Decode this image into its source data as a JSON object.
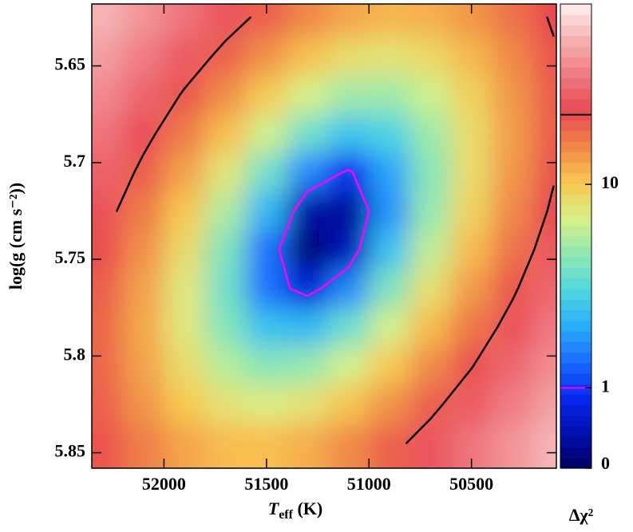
{
  "chart_data": {
    "type": "contour",
    "xlabel": {
      "symbol": "T",
      "subscript": "eff",
      "unit": " (K)"
    },
    "ylabel": "log(g (cm s⁻²))",
    "colorbar_label": "Δχ²",
    "xlim": [
      52352,
      50086
    ],
    "ylim": [
      5.858,
      5.618
    ],
    "xticks": [
      52000,
      51500,
      51000,
      50500
    ],
    "yticks": [
      5.65,
      5.7,
      5.75,
      5.8,
      5.85
    ],
    "zscale": "linear-log",
    "zlinthresh": 1,
    "zlim": [
      0,
      77
    ],
    "zticks": [
      0,
      1,
      10
    ],
    "colormap": [
      "#000060",
      "#0010b0",
      "#0828f0",
      "#1a6cff",
      "#28b0f8",
      "#50d8e0",
      "#90e8b0",
      "#d8f088",
      "#f8c850",
      "#f08848",
      "#e84850",
      "#f07880",
      "#f4b0b0",
      "#fff0f0"
    ],
    "contours": [
      {
        "level": 1,
        "color": "#ff00ff"
      },
      {
        "level": 22,
        "color": "#000000"
      }
    ],
    "x": [
      52300,
      52100,
      51900,
      51700,
      51500,
      51300,
      51100,
      50900,
      50700,
      50500,
      50300,
      50100
    ],
    "y": [
      5.625,
      5.645,
      5.665,
      5.685,
      5.705,
      5.725,
      5.745,
      5.765,
      5.785,
      5.805,
      5.825,
      5.845
    ],
    "z": [
      [
        52.6,
        42.0,
        32.9,
        25.5,
        19.7,
        15.4,
        12.7,
        11.5,
        12.0,
        14.0,
        17.6,
        22.8
      ],
      [
        45.3,
        35.3,
        26.6,
        19.7,
        14.4,
        10.7,
        8.4,
        7.8,
        8.8,
        11.3,
        15.3,
        21.1
      ],
      [
        38.8,
        29.2,
        21.1,
        14.8,
        9.9,
        6.7,
        5.0,
        4.9,
        6.4,
        9.4,
        14.0,
        20.2
      ],
      [
        33.3,
        24.2,
        16.7,
        10.8,
        6.5,
        3.7,
        2.5,
        2.9,
        4.9,
        8.4,
        13.5,
        20.3
      ],
      [
        28.6,
        20.1,
        13.0,
        7.6,
        3.8,
        1.6,
        0.9,
        1.9,
        4.3,
        8.4,
        14.0,
        21.3
      ],
      [
        24.8,
        16.8,
        10.3,
        5.4,
        2.2,
        0.4,
        0.3,
        1.7,
        4.7,
        9.2,
        15.3,
        23.2
      ],
      [
        22.0,
        14.5,
        8.5,
        4.1,
        1.4,
        0.1,
        0.5,
        2.4,
        5.9,
        11.0,
        17.6,
        25.9
      ],
      [
        20.0,
        13.0,
        7.5,
        3.7,
        1.4,
        0.7,
        1.6,
        4.1,
        8.1,
        13.6,
        20.8,
        29.6
      ],
      [
        19.0,
        12.5,
        7.5,
        4.2,
        2.4,
        2.2,
        3.6,
        6.6,
        11.1,
        17.1,
        24.8,
        34.2
      ],
      [
        18.8,
        12.9,
        8.4,
        5.6,
        4.3,
        4.7,
        6.6,
        10.0,
        15.1,
        21.6,
        29.8,
        39.7
      ],
      [
        19.6,
        14.1,
        10.2,
        7.9,
        7.1,
        7.9,
        10.4,
        14.3,
        19.9,
        26.9,
        35.6,
        46.0
      ],
      [
        21.2,
        16.3,
        12.8,
        11.0,
        10.8,
        12.1,
        15.0,
        19.5,
        25.5,
        33.1,
        42.3,
        53.2
      ]
    ]
  }
}
